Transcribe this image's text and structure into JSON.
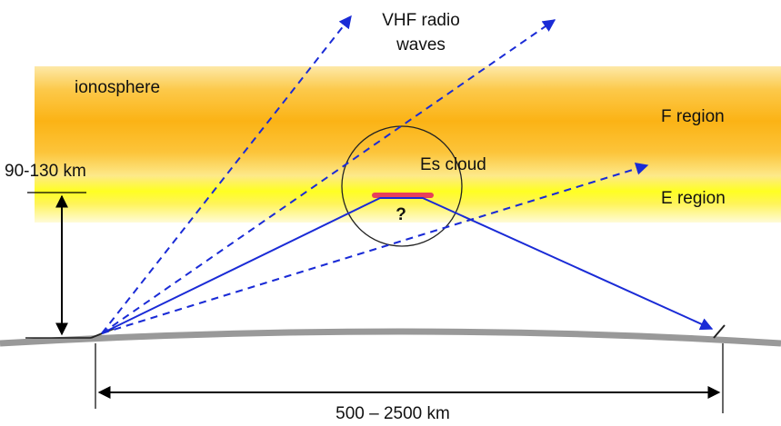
{
  "labels": {
    "vhf_line1": "VHF radio",
    "vhf_line2": "waves",
    "ionosphere": "ionosphere",
    "f_region": "F region",
    "es_cloud": "Es cloud",
    "height": "90-130 km",
    "e_region": "E region",
    "question": "?",
    "distance": "500 – 2500 km"
  }
}
